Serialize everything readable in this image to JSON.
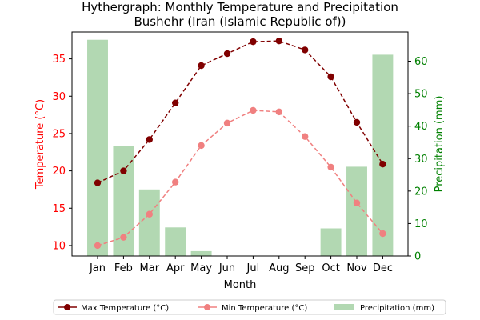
{
  "chart_data": {
    "type": "bar",
    "title": "Hythergraph: Monthly Temperature and Precipitation",
    "subtitle": "Bushehr (Iran (Islamic Republic of))",
    "xlabel": "Month",
    "ylabel_left": "Temperature (°C)",
    "ylabel_right": "Precipitation (mm)",
    "categories": [
      "Jan",
      "Feb",
      "Mar",
      "Apr",
      "May",
      "Jun",
      "Jul",
      "Aug",
      "Sep",
      "Oct",
      "Nov",
      "Dec"
    ],
    "ylim_left": [
      8.6,
      38.6
    ],
    "ylim_right": [
      0,
      69
    ],
    "yticks_left": [
      10,
      15,
      20,
      25,
      30,
      35
    ],
    "yticks_right": [
      0,
      10,
      20,
      30,
      40,
      50,
      60
    ],
    "series": [
      {
        "name": "Max Temperature (°C)",
        "kind": "line",
        "axis": "left",
        "color": "#800000",
        "style": "dashed",
        "values": [
          18.4,
          20.0,
          24.2,
          29.1,
          34.1,
          35.7,
          37.3,
          37.4,
          36.2,
          32.6,
          26.5,
          20.9
        ]
      },
      {
        "name": "Min Temperature (°C)",
        "kind": "line",
        "axis": "left",
        "color": "#f08080",
        "style": "dashed",
        "values": [
          10.0,
          11.1,
          14.2,
          18.5,
          23.4,
          26.4,
          28.1,
          27.9,
          24.6,
          20.5,
          15.7,
          11.6
        ]
      },
      {
        "name": "Precipitation (mm)",
        "kind": "bar",
        "axis": "right",
        "color": "#b2d8b2",
        "values": [
          66.6,
          34.0,
          20.5,
          8.8,
          1.5,
          0,
          0,
          0,
          0,
          8.5,
          27.5,
          62.0
        ]
      }
    ],
    "legend_position": "bottom",
    "left_axis_color": "#ff0000",
    "right_axis_color": "#008000",
    "grid": false
  }
}
